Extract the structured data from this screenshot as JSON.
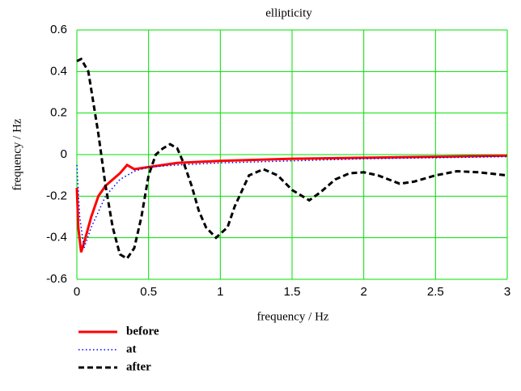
{
  "chart_data": {
    "type": "line",
    "title": "ellipticity",
    "x_label": "frequency / Hz",
    "y_label": "frequency / Hz",
    "xlim": [
      0,
      3
    ],
    "xticks": [
      0,
      0.5,
      1,
      1.5,
      2,
      2.5,
      3
    ],
    "ylim": [
      -0.6,
      0.6
    ],
    "yticks": [
      -0.6,
      -0.4,
      -0.2,
      0,
      0.2,
      0.4,
      0.6
    ],
    "grid": true,
    "grid_color": "#00e000",
    "legend": "bottom-left",
    "series": [
      {
        "name": "before",
        "color": "#ff0000",
        "dash": "solid",
        "x": [
          0,
          0.01,
          0.03,
          0.06,
          0.1,
          0.15,
          0.2,
          0.25,
          0.3,
          0.35,
          0.4,
          0.5,
          0.7,
          1.0,
          1.5,
          2.0,
          2.5,
          3.0
        ],
        "values": [
          -0.16,
          -0.35,
          -0.47,
          -0.4,
          -0.3,
          -0.2,
          -0.15,
          -0.12,
          -0.09,
          -0.05,
          -0.07,
          -0.06,
          -0.04,
          -0.03,
          -0.02,
          -0.015,
          -0.01,
          -0.005
        ]
      },
      {
        "name": "at",
        "color": "#0000ff",
        "dash": "dotted",
        "x": [
          0,
          0.02,
          0.05,
          0.1,
          0.2,
          0.3,
          0.4,
          0.5,
          0.7,
          1.0,
          1.5,
          2.0,
          3.0
        ],
        "values": [
          -0.05,
          -0.3,
          -0.45,
          -0.35,
          -0.2,
          -0.12,
          -0.08,
          -0.06,
          -0.05,
          -0.04,
          -0.03,
          -0.02,
          -0.01
        ]
      },
      {
        "name": "after",
        "color": "#000000",
        "dash": "dashed",
        "x": [
          0,
          0.03,
          0.08,
          0.15,
          0.2,
          0.25,
          0.3,
          0.35,
          0.4,
          0.45,
          0.5,
          0.55,
          0.6,
          0.65,
          0.7,
          0.75,
          0.8,
          0.85,
          0.9,
          0.97,
          1.05,
          1.1,
          1.2,
          1.3,
          1.4,
          1.5,
          1.62,
          1.7,
          1.8,
          1.9,
          2.0,
          2.1,
          2.25,
          2.35,
          2.5,
          2.65,
          2.8,
          3.0
        ],
        "values": [
          0.45,
          0.46,
          0.4,
          0.1,
          -0.15,
          -0.35,
          -0.48,
          -0.5,
          -0.45,
          -0.3,
          -0.1,
          0,
          0.03,
          0.05,
          0.03,
          -0.05,
          -0.15,
          -0.27,
          -0.35,
          -0.4,
          -0.35,
          -0.25,
          -0.1,
          -0.07,
          -0.1,
          -0.17,
          -0.22,
          -0.18,
          -0.12,
          -0.09,
          -0.085,
          -0.1,
          -0.14,
          -0.13,
          -0.1,
          -0.08,
          -0.085,
          -0.1
        ]
      }
    ]
  }
}
